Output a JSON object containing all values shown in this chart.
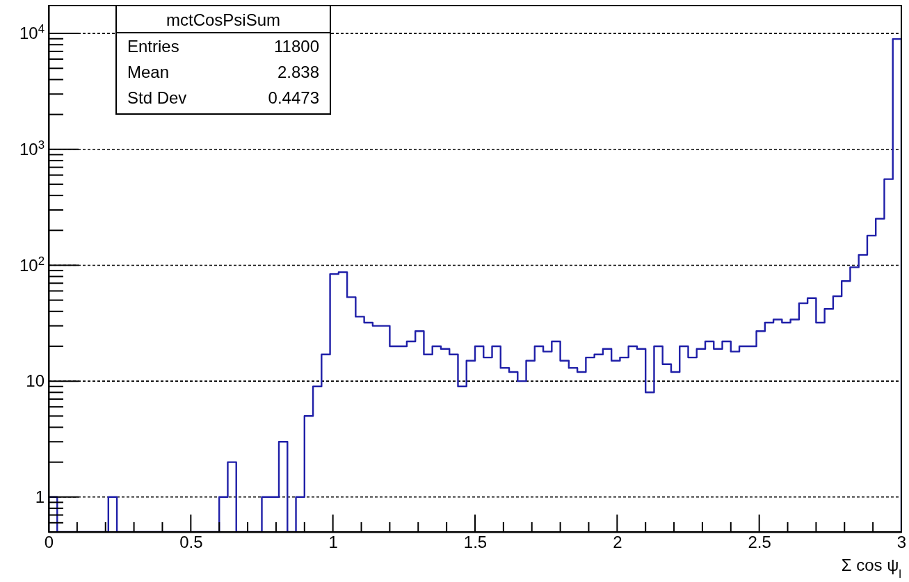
{
  "chart_data": {
    "type": "histogram",
    "xlabel": "Σ cos ψ$_{l}$",
    "bins": [
      0,
      0.03,
      0.06,
      0.09,
      0.12,
      0.15,
      0.18,
      0.21,
      0.24,
      0.27,
      0.3,
      0.33,
      0.36,
      0.39,
      0.42,
      0.45,
      0.48,
      0.51,
      0.54,
      0.57,
      0.6,
      0.63,
      0.66,
      0.69,
      0.72,
      0.75,
      0.78,
      0.81,
      0.84,
      0.87,
      0.9,
      0.93,
      0.96,
      0.99,
      1.02,
      1.05,
      1.08,
      1.11,
      1.14,
      1.17,
      1.2,
      1.23,
      1.26,
      1.29,
      1.32,
      1.35,
      1.38,
      1.41,
      1.44,
      1.47,
      1.5,
      1.53,
      1.56,
      1.59,
      1.62,
      1.65,
      1.68,
      1.71,
      1.74,
      1.77,
      1.8,
      1.83,
      1.86,
      1.89,
      1.92,
      1.95,
      1.98,
      2.01,
      2.04,
      2.07,
      2.1,
      2.13,
      2.16,
      2.19,
      2.22,
      2.25,
      2.28,
      2.31,
      2.34,
      2.37,
      2.4,
      2.43,
      2.46,
      2.49,
      2.52,
      2.55,
      2.58,
      2.61,
      2.64,
      2.67,
      2.7,
      2.73,
      2.76,
      2.79,
      2.82,
      2.85,
      2.88,
      2.91,
      2.94,
      2.97,
      3
    ],
    "values": [
      1,
      null,
      null,
      null,
      null,
      null,
      null,
      1,
      null,
      null,
      null,
      null,
      null,
      null,
      null,
      null,
      null,
      null,
      null,
      null,
      1,
      2,
      null,
      null,
      null,
      1,
      1,
      3,
      null,
      1,
      5,
      9,
      17,
      84,
      87,
      53,
      36,
      32,
      30,
      30,
      20,
      20,
      22,
      27,
      17,
      20,
      19,
      17,
      9,
      15,
      20,
      16,
      20,
      13,
      12,
      10,
      15,
      20,
      18,
      22,
      15,
      13,
      12,
      16,
      17,
      19,
      15,
      16,
      20,
      19,
      8,
      20,
      14,
      12,
      20,
      16,
      19,
      22,
      19,
      22,
      18,
      20,
      20,
      27,
      32,
      34,
      32,
      34,
      47,
      52,
      32,
      42,
      54,
      73,
      96,
      123,
      180,
      252,
      553,
      8950
    ],
    "color": "#1f1fa8",
    "xlim": [
      0,
      3
    ],
    "ylim": [
      0.5,
      17400
    ],
    "log": "y",
    "grid": "y",
    "xticks": [
      0,
      0.5,
      1,
      1.5,
      2,
      2.5,
      3
    ],
    "yticks": [
      1,
      10,
      {
        "value": 100,
        "label": "10$^{2}$"
      },
      {
        "value": 1000,
        "label": "10$^{3}$"
      },
      {
        "value": 10000,
        "label": "10$^{4}$"
      }
    ],
    "annotations": [
      "mctCosPsiSum",
      "Entries",
      "11800",
      "Mean",
      "2.838",
      "Std Dev",
      "0.4473"
    ]
  }
}
